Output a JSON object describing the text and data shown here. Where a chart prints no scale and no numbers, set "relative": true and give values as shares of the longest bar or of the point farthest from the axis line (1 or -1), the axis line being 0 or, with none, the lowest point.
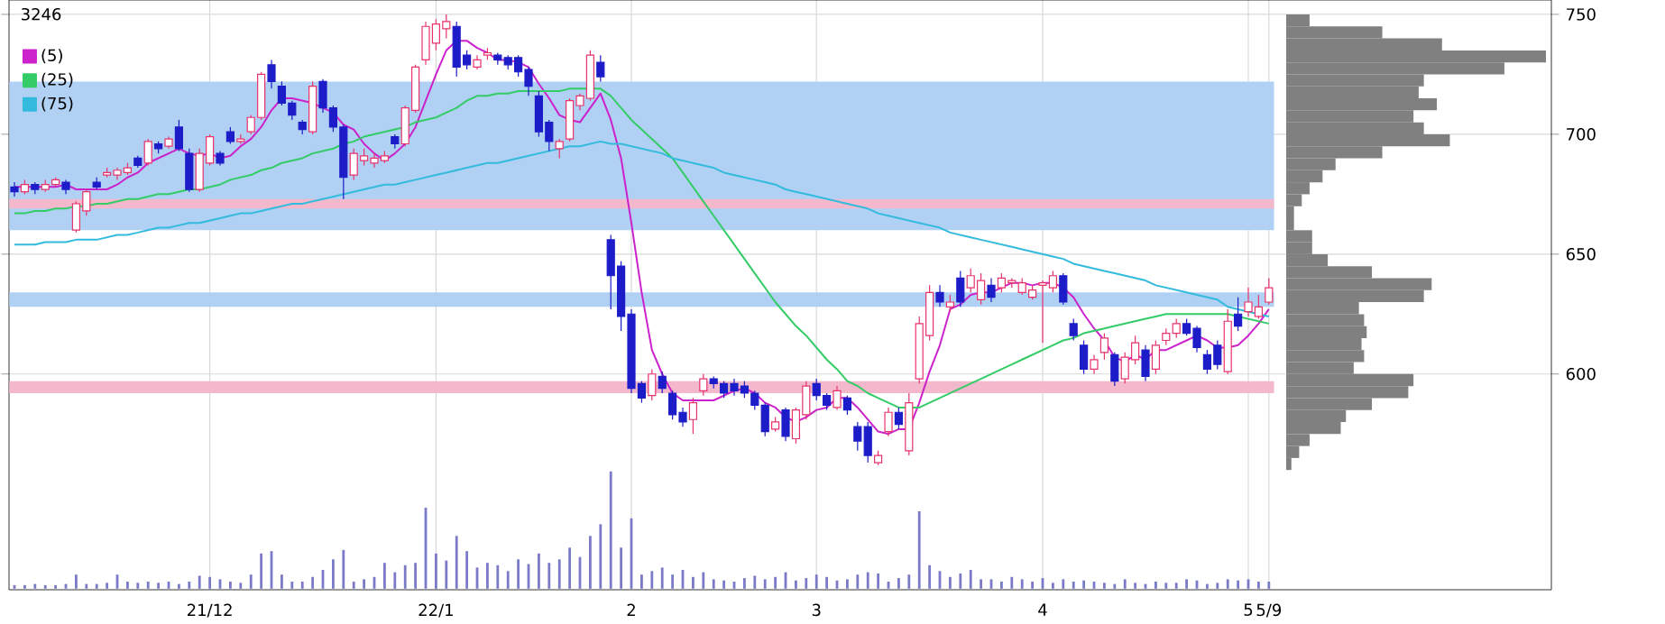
{
  "chart_data": [
    {
      "type": "candlestick",
      "title": "3246",
      "categories": [
        null,
        null,
        null,
        null,
        null,
        null,
        null,
        null,
        null,
        null,
        null,
        null,
        null,
        null,
        null,
        null,
        null,
        null,
        null,
        "21/12",
        null,
        null,
        null,
        null,
        null,
        null,
        null,
        null,
        null,
        null,
        null,
        null,
        null,
        null,
        null,
        null,
        null,
        null,
        null,
        null,
        null,
        "22/1",
        null,
        null,
        null,
        null,
        null,
        null,
        null,
        null,
        null,
        null,
        null,
        null,
        null,
        null,
        null,
        null,
        null,
        null,
        "2",
        null,
        null,
        null,
        null,
        null,
        null,
        null,
        null,
        null,
        null,
        null,
        null,
        null,
        null,
        null,
        null,
        null,
        "3",
        null,
        null,
        null,
        null,
        null,
        null,
        null,
        null,
        null,
        null,
        null,
        null,
        null,
        null,
        null,
        null,
        null,
        null,
        null,
        null,
        null,
        "4",
        null,
        null,
        null,
        null,
        null,
        null,
        null,
        null,
        null,
        null,
        null,
        null,
        null,
        null,
        null,
        null,
        null,
        null,
        null,
        "5",
        null,
        "5/9"
      ],
      "ohlc": [
        [
          678,
          680,
          674,
          676
        ],
        [
          676,
          681,
          675,
          679
        ],
        [
          679,
          680,
          675,
          677
        ],
        [
          677,
          681,
          676,
          679
        ],
        [
          679,
          682,
          678,
          681
        ],
        [
          680,
          681,
          675,
          677
        ],
        [
          660,
          672,
          659,
          671
        ],
        [
          668,
          677,
          666,
          676
        ],
        [
          680,
          682,
          677,
          678
        ],
        [
          683,
          686,
          682,
          684
        ],
        [
          683,
          686,
          681,
          685
        ],
        [
          684,
          688,
          683,
          686
        ],
        [
          690,
          691,
          686,
          687
        ],
        [
          688,
          698,
          687,
          697
        ],
        [
          696,
          697,
          692,
          694
        ],
        [
          695,
          699,
          694,
          698
        ],
        [
          703,
          706,
          693,
          694
        ],
        [
          692,
          694,
          676,
          677
        ],
        [
          677,
          694,
          676,
          692
        ],
        [
          688,
          700,
          687,
          699
        ],
        [
          692,
          693,
          687,
          688
        ],
        [
          701,
          703,
          696,
          697
        ],
        [
          697,
          700,
          696,
          698
        ],
        [
          701,
          708,
          700,
          707
        ],
        [
          707,
          726,
          706,
          725
        ],
        [
          729,
          731,
          719,
          722
        ],
        [
          720,
          722,
          712,
          713
        ],
        [
          713,
          714,
          706,
          708
        ],
        [
          705,
          706,
          700,
          702
        ],
        [
          701,
          722,
          700,
          720
        ],
        [
          722,
          723,
          709,
          711
        ],
        [
          711,
          712,
          701,
          703
        ],
        [
          703,
          704,
          673,
          682
        ],
        [
          683,
          694,
          681,
          692
        ],
        [
          689,
          694,
          687,
          691
        ],
        [
          688,
          692,
          686,
          690
        ],
        [
          689,
          693,
          688,
          691
        ],
        [
          699,
          700,
          694,
          696
        ],
        [
          696,
          712,
          695,
          711
        ],
        [
          710,
          729,
          709,
          728
        ],
        [
          731,
          747,
          729,
          745
        ],
        [
          738,
          748,
          735,
          746
        ],
        [
          744,
          750,
          740,
          747
        ],
        [
          745,
          747,
          724,
          728
        ],
        [
          733,
          735,
          727,
          729
        ],
        [
          728,
          733,
          727,
          731
        ],
        [
          733,
          736,
          731,
          734
        ],
        [
          733,
          734,
          729,
          731
        ],
        [
          732,
          733,
          727,
          729
        ],
        [
          732,
          733,
          724,
          726
        ],
        [
          727,
          728,
          716,
          720
        ],
        [
          716,
          718,
          699,
          701
        ],
        [
          705,
          706,
          693,
          697
        ],
        [
          694,
          698,
          690,
          697
        ],
        [
          698,
          715,
          697,
          714
        ],
        [
          712,
          717,
          710,
          716
        ],
        [
          715,
          735,
          714,
          733
        ],
        [
          730,
          733,
          722,
          724
        ],
        [
          656,
          658,
          627,
          641
        ],
        [
          645,
          647,
          618,
          624
        ],
        [
          625,
          627,
          592,
          594
        ],
        [
          596,
          597,
          588,
          590
        ],
        [
          591,
          602,
          589,
          600
        ],
        [
          599,
          601,
          592,
          594
        ],
        [
          592,
          593,
          581,
          583
        ],
        [
          584,
          586,
          578,
          580
        ],
        [
          581,
          590,
          575,
          588
        ],
        [
          593,
          600,
          591,
          598
        ],
        [
          598,
          599,
          594,
          596
        ],
        [
          596,
          597,
          590,
          592
        ],
        [
          596,
          598,
          591,
          593
        ],
        [
          595,
          597,
          590,
          592
        ],
        [
          592,
          593,
          585,
          587
        ],
        [
          587,
          588,
          574,
          576
        ],
        [
          577,
          582,
          576,
          580
        ],
        [
          585,
          586,
          572,
          574
        ],
        [
          573,
          586,
          571,
          585
        ],
        [
          583,
          597,
          581,
          595
        ],
        [
          596,
          598,
          589,
          591
        ],
        [
          591,
          592,
          585,
          587
        ],
        [
          586,
          595,
          585,
          593
        ],
        [
          590,
          591,
          583,
          585
        ],
        [
          578,
          580,
          568,
          572
        ],
        [
          578,
          580,
          563,
          566
        ],
        [
          563,
          568,
          562,
          566
        ],
        [
          576,
          586,
          574,
          584
        ],
        [
          584,
          586,
          577,
          579
        ],
        [
          568,
          592,
          566,
          588
        ],
        [
          598,
          624,
          596,
          621
        ],
        [
          616,
          637,
          614,
          634
        ],
        [
          634,
          637,
          628,
          630
        ],
        [
          628,
          633,
          626,
          630
        ],
        [
          640,
          643,
          628,
          630
        ],
        [
          636,
          644,
          634,
          641
        ],
        [
          631,
          642,
          629,
          639
        ],
        [
          637,
          640,
          630,
          632
        ],
        [
          636,
          642,
          634,
          640
        ],
        [
          638,
          640,
          636,
          639
        ],
        [
          634,
          640,
          633,
          638
        ],
        [
          632,
          637,
          631,
          635
        ],
        [
          637,
          639,
          613,
          638
        ],
        [
          636,
          643,
          634,
          641
        ],
        [
          641,
          642,
          629,
          630
        ],
        [
          621,
          623,
          614,
          616
        ],
        [
          612,
          614,
          600,
          602
        ],
        [
          602,
          608,
          600,
          606
        ],
        [
          609,
          617,
          606,
          615
        ],
        [
          608,
          609,
          595,
          597
        ],
        [
          598,
          609,
          596,
          607
        ],
        [
          606,
          616,
          604,
          613
        ],
        [
          610,
          612,
          597,
          599
        ],
        [
          602,
          614,
          600,
          612
        ],
        [
          614,
          619,
          612,
          617
        ],
        [
          617,
          623,
          615,
          621
        ],
        [
          621,
          623,
          616,
          617
        ],
        [
          619,
          620,
          609,
          611
        ],
        [
          608,
          610,
          600,
          602
        ],
        [
          612,
          614,
          602,
          604
        ],
        [
          601,
          627,
          600,
          622
        ],
        [
          625,
          632,
          618,
          620
        ],
        [
          626,
          636,
          624,
          630
        ],
        [
          624,
          633,
          623,
          628
        ],
        [
          630,
          640,
          629,
          636
        ]
      ],
      "colors": [
        "#1c1cc8",
        "#e8336b",
        "#1c1cc8",
        "#e8336b",
        "#e8336b",
        "#1c1cc8",
        "#e8336b",
        "#e8336b",
        "#1c1cc8",
        "#e8336b",
        "#e8336b",
        "#e8336b",
        "#1c1cc8",
        "#e8336b",
        "#1c1cc8",
        "#e8336b",
        "#1c1cc8",
        "#1c1cc8",
        "#e8336b",
        "#e8336b",
        "#1c1cc8",
        "#1c1cc8",
        "#e8336b",
        "#e8336b",
        "#e8336b",
        "#1c1cc8",
        "#1c1cc8",
        "#1c1cc8",
        "#1c1cc8",
        "#e8336b",
        "#1c1cc8",
        "#1c1cc8",
        "#1c1cc8",
        "#e8336b",
        "#e8336b",
        "#e8336b",
        "#e8336b",
        "#1c1cc8",
        "#e8336b",
        "#e8336b",
        "#e8336b",
        "#e8336b",
        "#e8336b",
        "#1c1cc8",
        "#1c1cc8",
        "#e8336b",
        "#e8336b",
        "#1c1cc8",
        "#1c1cc8",
        "#1c1cc8",
        "#1c1cc8",
        "#1c1cc8",
        "#1c1cc8",
        "#e8336b",
        "#e8336b",
        "#e8336b",
        "#e8336b",
        "#1c1cc8",
        "#1c1cc8",
        "#1c1cc8",
        "#1c1cc8",
        "#1c1cc8",
        "#e8336b",
        "#1c1cc8",
        "#1c1cc8",
        "#1c1cc8",
        "#e8336b",
        "#e8336b",
        "#1c1cc8",
        "#1c1cc8",
        "#1c1cc8",
        "#1c1cc8",
        "#1c1cc8",
        "#1c1cc8",
        "#e8336b",
        "#1c1cc8",
        "#e8336b",
        "#e8336b",
        "#1c1cc8",
        "#1c1cc8",
        "#e8336b",
        "#1c1cc8",
        "#1c1cc8",
        "#1c1cc8",
        "#e8336b",
        "#e8336b",
        "#1c1cc8",
        "#e8336b",
        "#e8336b",
        "#e8336b",
        "#1c1cc8",
        "#e8336b",
        "#1c1cc8",
        "#e8336b",
        "#e8336b",
        "#1c1cc8",
        "#e8336b",
        "#e8336b",
        "#e8336b",
        "#e8336b",
        "#e8336b",
        "#e8336b",
        "#1c1cc8",
        "#1c1cc8",
        "#1c1cc8",
        "#e8336b",
        "#e8336b",
        "#1c1cc8",
        "#e8336b",
        "#e8336b",
        "#1c1cc8",
        "#e8336b",
        "#e8336b",
        "#e8336b",
        "#1c1cc8",
        "#1c1cc8",
        "#1c1cc8",
        "#1c1cc8",
        "#e8336b",
        "#1c1cc8",
        "#e8336b",
        "#e8336b",
        "#e8336b"
      ],
      "series": [
        {
          "type": "line",
          "name": "(5)",
          "color": "#cc22cc",
          "values": [
            678,
            678,
            678,
            678,
            678,
            679,
            677,
            677,
            677,
            677,
            679,
            682,
            684,
            688,
            690,
            692,
            694,
            692,
            691,
            692,
            690,
            691,
            695,
            698,
            703,
            710,
            715,
            715,
            714,
            713,
            711,
            709,
            704,
            702,
            696,
            692,
            689,
            692,
            696,
            703,
            714,
            725,
            735,
            739,
            739,
            736,
            734,
            731,
            731,
            730,
            728,
            721,
            715,
            708,
            706,
            705,
            711,
            717,
            706,
            690,
            663,
            634,
            610,
            600,
            592,
            589,
            589,
            589,
            589,
            591,
            593,
            594,
            592,
            588,
            586,
            582,
            580,
            582,
            585,
            586,
            590,
            590,
            586,
            581,
            576,
            575,
            577,
            577,
            588,
            601,
            612,
            627,
            629,
            633,
            634,
            634,
            636,
            638,
            638,
            637,
            638,
            638,
            636,
            632,
            625,
            619,
            614,
            607,
            605,
            608,
            606,
            610,
            610,
            612,
            614,
            616,
            614,
            611,
            611,
            612,
            616,
            621,
            627
          ]
        },
        {
          "type": "line",
          "name": "(25)",
          "color": "#33cc66",
          "values": [
            667,
            667,
            668,
            668,
            669,
            669,
            670,
            670,
            671,
            671,
            672,
            673,
            673,
            674,
            675,
            675,
            676,
            677,
            677,
            678,
            679,
            681,
            682,
            683,
            685,
            686,
            688,
            689,
            690,
            692,
            693,
            694,
            696,
            697,
            699,
            700,
            701,
            702,
            703,
            705,
            706,
            707,
            709,
            711,
            714,
            716,
            716,
            717,
            717,
            718,
            718,
            718,
            718,
            718,
            719,
            719,
            719,
            719,
            716,
            711,
            706,
            702,
            698,
            694,
            690,
            684,
            678,
            672,
            666,
            660,
            654,
            648,
            642,
            636,
            630,
            625,
            620,
            616,
            611,
            606,
            602,
            597,
            595,
            592,
            590,
            588,
            586,
            586,
            586,
            588,
            590,
            592,
            594,
            596,
            598,
            600,
            602,
            604,
            606,
            608,
            610,
            612,
            614,
            615,
            617,
            618,
            619,
            620,
            621,
            622,
            623,
            624,
            625,
            625,
            625,
            625,
            625,
            625,
            625,
            624,
            623,
            622,
            621
          ]
        },
        {
          "type": "line",
          "name": "(75)",
          "color": "#33bbdd",
          "values": [
            654,
            654,
            654,
            655,
            655,
            655,
            656,
            656,
            656,
            657,
            658,
            658,
            659,
            660,
            661,
            661,
            662,
            663,
            663,
            664,
            665,
            666,
            667,
            667,
            668,
            669,
            670,
            671,
            671,
            672,
            673,
            674,
            675,
            676,
            677,
            678,
            679,
            679,
            680,
            681,
            682,
            683,
            684,
            685,
            686,
            687,
            688,
            688,
            689,
            690,
            691,
            692,
            693,
            694,
            695,
            695,
            696,
            697,
            696,
            696,
            695,
            694,
            693,
            692,
            690,
            689,
            688,
            687,
            686,
            684,
            683,
            682,
            681,
            680,
            679,
            677,
            676,
            675,
            674,
            673,
            672,
            671,
            670,
            669,
            667,
            666,
            665,
            664,
            663,
            662,
            661,
            659,
            658,
            657,
            656,
            655,
            654,
            653,
            652,
            651,
            650,
            649,
            648,
            646,
            645,
            644,
            643,
            642,
            641,
            640,
            639,
            637,
            636,
            635,
            634,
            633,
            632,
            631,
            628,
            627,
            626,
            625,
            624
          ]
        }
      ],
      "bands": [
        {
          "axis": "y",
          "from": 660,
          "to": 722,
          "color": "#b0d0f4"
        },
        {
          "axis": "y",
          "from": 628,
          "to": 634,
          "color": "#b0d0f4"
        },
        {
          "axis": "y",
          "from": 592,
          "to": 597,
          "color": "#f4b8cc"
        },
        {
          "axis": "y",
          "from": 669,
          "to": 673,
          "color": "#f4b8cc"
        }
      ],
      "ylim": [
        510,
        756
      ],
      "yticks": [
        600,
        650,
        700,
        750
      ],
      "grid": true,
      "legend": "top left"
    },
    {
      "type": "bar",
      "relative": true,
      "color": "#7a7ac8",
      "categories": [
        null,
        null,
        null,
        null,
        null,
        null,
        null,
        null,
        null,
        null,
        null,
        null,
        null,
        null,
        null,
        null,
        null,
        null,
        null,
        null,
        null,
        null,
        null,
        null,
        null,
        null,
        null,
        null,
        null,
        null,
        null,
        null,
        null,
        null,
        null,
        null,
        null,
        null,
        null,
        null,
        null,
        null,
        null,
        null,
        null,
        null,
        null,
        null,
        null,
        null,
        null,
        null,
        null,
        null,
        null,
        null,
        null,
        null,
        null,
        null,
        null,
        null,
        null,
        null,
        null,
        null,
        null,
        null,
        null,
        null,
        null,
        null,
        null,
        null,
        null,
        null,
        null,
        null,
        null,
        null,
        null,
        null,
        null,
        null,
        null,
        null,
        null,
        null,
        null,
        null,
        null,
        null,
        null,
        null,
        null,
        null,
        null,
        null,
        null,
        null,
        null,
        null,
        null,
        null,
        null,
        null,
        null,
        null,
        null,
        null,
        null,
        null,
        null,
        null,
        null,
        null,
        null,
        null,
        null,
        null,
        null,
        null,
        null
      ],
      "values": [
        0.03,
        0.03,
        0.04,
        0.03,
        0.03,
        0.04,
        0.12,
        0.04,
        0.04,
        0.05,
        0.12,
        0.06,
        0.05,
        0.06,
        0.05,
        0.06,
        0.04,
        0.06,
        0.11,
        0.1,
        0.08,
        0.06,
        0.05,
        0.12,
        0.3,
        0.32,
        0.12,
        0.06,
        0.06,
        0.1,
        0.16,
        0.25,
        0.33,
        0.06,
        0.08,
        0.1,
        0.22,
        0.14,
        0.2,
        0.22,
        0.69,
        0.3,
        0.24,
        0.45,
        0.32,
        0.18,
        0.22,
        0.2,
        0.15,
        0.25,
        0.21,
        0.3,
        0.22,
        0.25,
        0.35,
        0.27,
        0.45,
        0.55,
        1.0,
        0.35,
        0.6,
        0.12,
        0.15,
        0.18,
        0.12,
        0.16,
        0.1,
        0.14,
        0.08,
        0.07,
        0.06,
        0.09,
        0.11,
        0.08,
        0.1,
        0.14,
        0.07,
        0.09,
        0.12,
        0.1,
        0.07,
        0.08,
        0.12,
        0.14,
        0.13,
        0.06,
        0.09,
        0.12,
        0.66,
        0.2,
        0.15,
        0.1,
        0.13,
        0.16,
        0.08,
        0.08,
        0.06,
        0.1,
        0.08,
        0.06,
        0.09,
        0.05,
        0.08,
        0.06,
        0.07,
        0.06,
        0.05,
        0.04,
        0.08,
        0.05,
        0.04,
        0.06,
        0.05,
        0.05,
        0.08,
        0.07,
        0.04,
        0.05,
        0.08,
        0.07,
        0.08,
        0.06,
        0.06
      ]
    },
    {
      "type": "bar",
      "orientation": "horizontal",
      "relative": true,
      "color": "#808080",
      "categories": [
        null,
        null,
        null,
        null,
        null,
        null,
        null,
        null,
        null,
        null,
        null,
        null,
        null,
        null,
        null,
        null,
        null,
        null,
        null,
        null,
        null,
        null,
        null,
        null,
        null,
        null,
        null,
        null,
        null,
        null,
        null,
        null,
        null,
        null,
        null,
        null,
        null,
        null
      ],
      "values": [
        0.09,
        0.37,
        0.6,
        1.0,
        0.84,
        0.53,
        0.51,
        0.58,
        0.49,
        0.53,
        0.63,
        0.37,
        0.19,
        0.14,
        0.09,
        0.06,
        0.03,
        0.03,
        0.1,
        0.1,
        0.16,
        0.33,
        0.56,
        0.53,
        0.28,
        0.3,
        0.31,
        0.29,
        0.3,
        0.26,
        0.49,
        0.47,
        0.33,
        0.23,
        0.21,
        0.09,
        0.05,
        0.02
      ]
    }
  ]
}
